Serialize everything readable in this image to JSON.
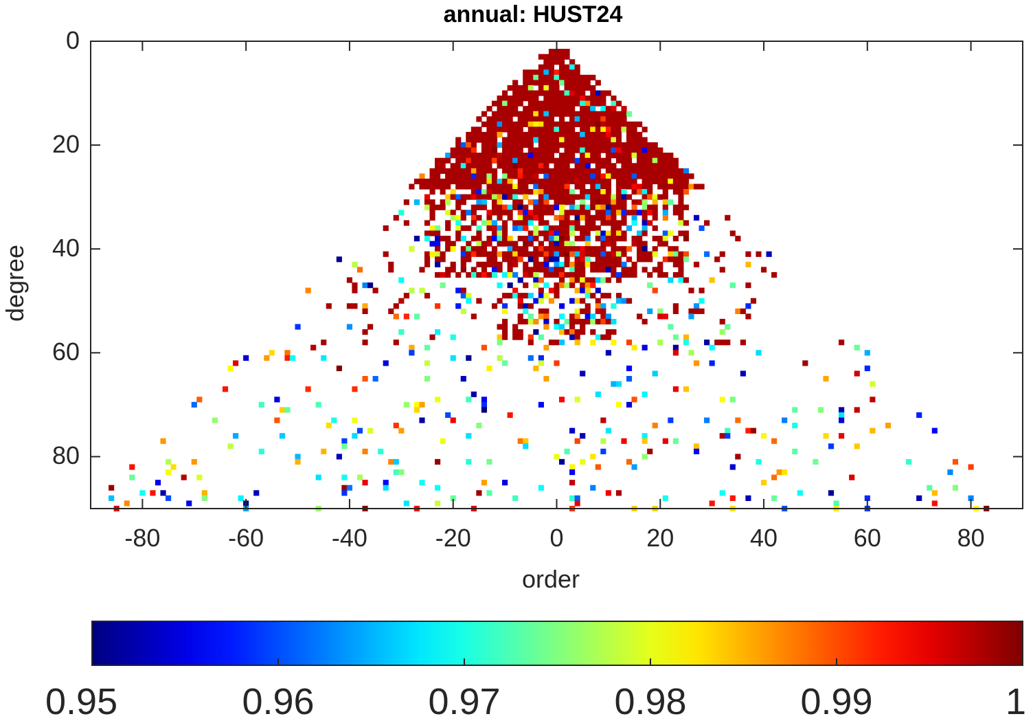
{
  "chart_data": {
    "type": "heatmap",
    "title": "annual: HUST24",
    "xlabel": "order",
    "ylabel": "degree",
    "xlim": [
      -90,
      90
    ],
    "ylim": [
      0,
      90
    ],
    "y_reversed": true,
    "xticks": [
      "-80",
      "-60",
      "-40",
      "-20",
      "0",
      "20",
      "40",
      "60",
      "80"
    ],
    "yticks": [
      "0",
      "20",
      "40",
      "60",
      "80"
    ],
    "colorbar": {
      "colormap": "jet",
      "range": [
        0.95,
        1.0
      ],
      "ticks": [
        "0.95",
        "0.96",
        "0.97",
        "0.98",
        "0.99",
        "1"
      ],
      "placement": "bottom"
    },
    "description_of_cells": "Each colored cell is one spherical-harmonic coefficient (order m, degree n). Nearly all coefficients with n below about 45 inside the triangle |m| <= n are dark red (value near 1.0); with increasing degree the cells become sparse and take scattered values across the 0.95-1.0 range.",
    "dense_region": {
      "degree_min": 2,
      "degree_max": 58,
      "value": 0.998
    },
    "sparse_region": {
      "degree_min": 30,
      "degree_max": 90,
      "value_range": [
        0.95,
        1.0
      ]
    },
    "grid": false
  }
}
